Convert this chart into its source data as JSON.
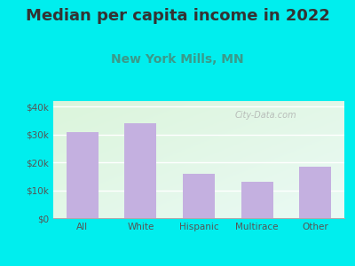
{
  "title": "Median per capita income in 2022",
  "subtitle": "New York Mills, MN",
  "categories": [
    "All",
    "White",
    "Hispanic",
    "Multirace",
    "Other"
  ],
  "values": [
    31000,
    34000,
    16000,
    13000,
    18500
  ],
  "bar_color": "#c4b0e0",
  "title_fontsize": 13,
  "subtitle_fontsize": 10,
  "subtitle_color": "#3a9a8a",
  "title_color": "#333333",
  "bg_outer": "#00eeee",
  "ylim": [
    0,
    42000
  ],
  "yticks": [
    0,
    10000,
    20000,
    30000,
    40000
  ],
  "ytick_labels": [
    "$0",
    "$10k",
    "$20k",
    "$30k",
    "$40k"
  ],
  "watermark": "City-Data.com"
}
